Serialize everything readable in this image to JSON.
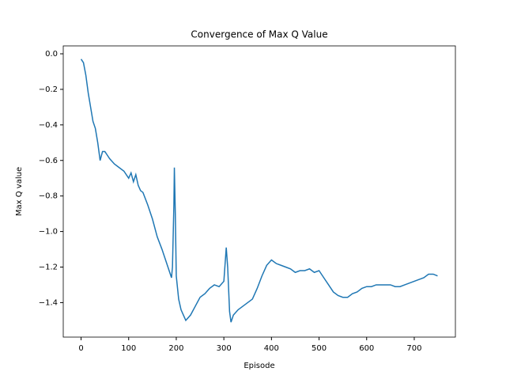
{
  "chart_data": {
    "type": "line",
    "title": "Convergence of Max Q Value",
    "x_label": "Episode",
    "y_label": "Max Q value",
    "x": [
      0,
      5,
      10,
      15,
      20,
      25,
      30,
      35,
      40,
      45,
      50,
      55,
      60,
      70,
      80,
      90,
      100,
      105,
      110,
      115,
      120,
      125,
      130,
      140,
      150,
      160,
      170,
      180,
      190,
      192,
      195,
      196,
      198,
      200,
      205,
      210,
      215,
      220,
      230,
      240,
      250,
      260,
      270,
      280,
      290,
      300,
      305,
      308,
      312,
      315,
      320,
      330,
      340,
      350,
      360,
      370,
      380,
      390,
      400,
      410,
      420,
      430,
      440,
      450,
      460,
      470,
      480,
      490,
      500,
      510,
      520,
      530,
      540,
      550,
      560,
      570,
      580,
      590,
      600,
      610,
      620,
      630,
      640,
      650,
      660,
      670,
      680,
      690,
      700,
      710,
      720,
      730,
      740,
      749
    ],
    "series": [
      {
        "name": "Max Q",
        "color": "#1f77b4",
        "values": [
          -0.03,
          -0.05,
          -0.12,
          -0.22,
          -0.3,
          -0.38,
          -0.42,
          -0.5,
          -0.6,
          -0.55,
          -0.55,
          -0.57,
          -0.59,
          -0.62,
          -0.64,
          -0.66,
          -0.7,
          -0.67,
          -0.72,
          -0.68,
          -0.74,
          -0.77,
          -0.78,
          -0.85,
          -0.93,
          -1.03,
          -1.1,
          -1.18,
          -1.26,
          -1.2,
          -0.85,
          -0.64,
          -0.9,
          -1.25,
          -1.38,
          -1.44,
          -1.47,
          -1.5,
          -1.47,
          -1.42,
          -1.37,
          -1.35,
          -1.32,
          -1.3,
          -1.31,
          -1.28,
          -1.09,
          -1.2,
          -1.45,
          -1.51,
          -1.47,
          -1.44,
          -1.42,
          -1.4,
          -1.38,
          -1.32,
          -1.25,
          -1.19,
          -1.16,
          -1.18,
          -1.19,
          -1.2,
          -1.21,
          -1.23,
          -1.22,
          -1.22,
          -1.21,
          -1.23,
          -1.22,
          -1.26,
          -1.3,
          -1.34,
          -1.36,
          -1.37,
          -1.37,
          -1.35,
          -1.34,
          -1.32,
          -1.31,
          -1.31,
          -1.3,
          -1.3,
          -1.3,
          -1.3,
          -1.31,
          -1.31,
          -1.3,
          -1.29,
          -1.28,
          -1.27,
          -1.26,
          -1.24,
          -1.24,
          -1.25
        ]
      }
    ],
    "xlim": [
      -37.45,
      786.45
    ],
    "xticks": [
      0,
      100,
      200,
      300,
      400,
      500,
      600,
      700
    ],
    "ylim": [
      -1.594,
      0.0445
    ],
    "yticks": [
      {
        "value": 0,
        "label": "0.0"
      },
      {
        "value": -0.2,
        "label": "−0.2"
      },
      {
        "value": -0.4,
        "label": "−0.4"
      },
      {
        "value": -0.6,
        "label": "−0.6"
      },
      {
        "value": -0.8,
        "label": "−0.8"
      },
      {
        "value": -1.0,
        "label": "−1.0"
      },
      {
        "value": -1.2,
        "label": "−1.2"
      },
      {
        "value": -1.4,
        "label": "−1.4"
      }
    ],
    "grid": false
  }
}
